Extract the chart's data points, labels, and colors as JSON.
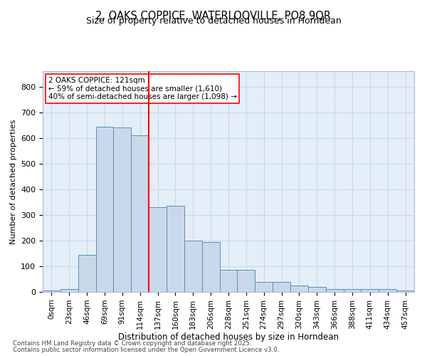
{
  "title": "2, OAKS COPPICE, WATERLOOVILLE, PO8 9QR",
  "subtitle": "Size of property relative to detached houses in Horndean",
  "xlabel": "Distribution of detached houses by size in Horndean",
  "ylabel": "Number of detached properties",
  "bins": [
    "0sqm",
    "23sqm",
    "46sqm",
    "69sqm",
    "91sqm",
    "114sqm",
    "137sqm",
    "160sqm",
    "183sqm",
    "206sqm",
    "228sqm",
    "251sqm",
    "274sqm",
    "297sqm",
    "320sqm",
    "343sqm",
    "366sqm",
    "388sqm",
    "411sqm",
    "434sqm",
    "457sqm"
  ],
  "values": [
    5,
    10,
    145,
    645,
    640,
    610,
    330,
    335,
    200,
    195,
    85,
    85,
    40,
    40,
    25,
    20,
    10,
    12,
    12,
    10,
    5
  ],
  "bar_color": "#c9d9ea",
  "bar_edge_color": "#5b8db8",
  "bar_linewidth": 0.7,
  "vline_x_pos": 5.5,
  "vline_color": "red",
  "annotation_text": "2 OAKS COPPICE: 121sqm\n← 59% of detached houses are smaller (1,610)\n40% of semi-detached houses are larger (1,098) →",
  "annotation_box_facecolor": "white",
  "annotation_box_edgecolor": "red",
  "grid_color": "#c8d8e8",
  "bg_color": "#e4eef8",
  "ylim": [
    0,
    860
  ],
  "yticks": [
    0,
    100,
    200,
    300,
    400,
    500,
    600,
    700,
    800
  ],
  "footer1": "Contains HM Land Registry data © Crown copyright and database right 2025.",
  "footer2": "Contains public sector information licensed under the Open Government Licence v3.0."
}
